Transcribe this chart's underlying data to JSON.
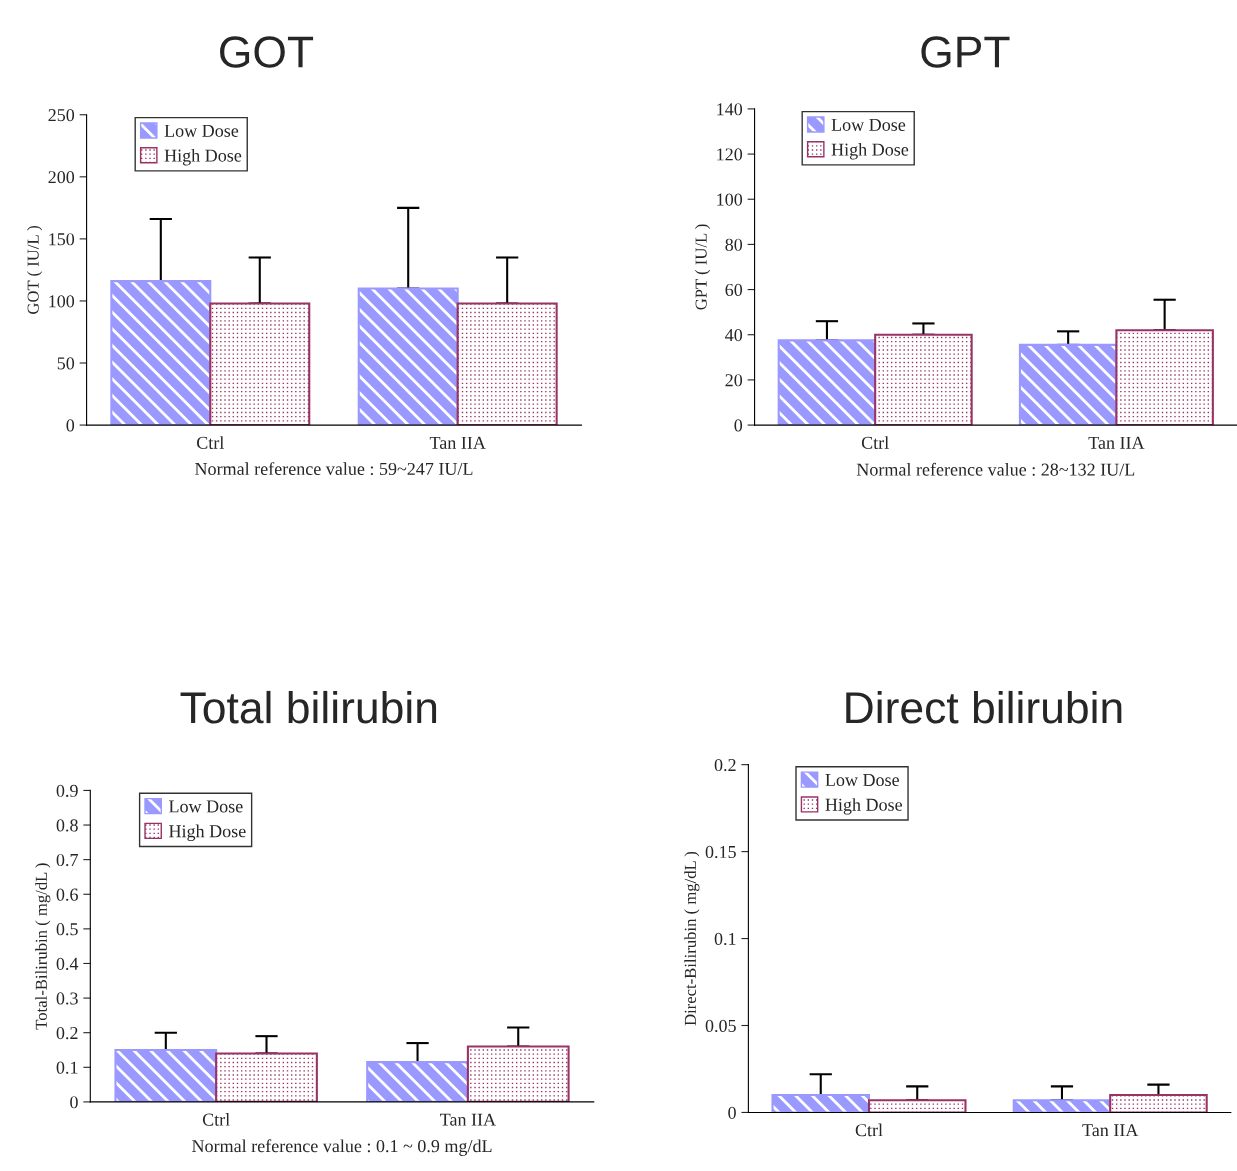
{
  "chart_data": [
    {
      "type": "bar",
      "title": "GOT",
      "ylabel": "GOT ( IU/L )",
      "categories": [
        "Ctrl",
        "Tan IIA"
      ],
      "ylim": [
        0,
        250
      ],
      "yticks": [
        0,
        50,
        100,
        150,
        200,
        250
      ],
      "legend": "top left",
      "grid": false,
      "annotations": [
        "Normal reference value : 59~247 IU/L"
      ],
      "series": [
        {
          "name": "Low Dose",
          "color": "#9999ff",
          "values": [
            116,
            110
          ],
          "errors": [
            [
              116,
              166
            ],
            [
              110,
              175
            ]
          ]
        },
        {
          "name": "High Dose",
          "color": "#993366",
          "values": [
            98,
            98
          ],
          "errors": [
            [
              98,
              135
            ],
            [
              98,
              135
            ]
          ]
        }
      ]
    },
    {
      "type": "bar",
      "title": "GPT",
      "ylabel": "GPT ( IU/L )",
      "categories": [
        "Ctrl",
        "Tan IIA"
      ],
      "ylim": [
        0,
        140
      ],
      "yticks": [
        0,
        20,
        40,
        60,
        80,
        100,
        120,
        140
      ],
      "legend": "top left",
      "grid": false,
      "annotations": [
        "Normal reference value : 28~132 IU/L"
      ],
      "series": [
        {
          "name": "Low Dose",
          "color": "#9999ff",
          "values": [
            37.5,
            35.5
          ],
          "errors": [
            [
              37.5,
              46
            ],
            [
              35.5,
              41.5
            ]
          ]
        },
        {
          "name": "High Dose",
          "color": "#993366",
          "values": [
            40,
            42
          ],
          "errors": [
            [
              40,
              45
            ],
            [
              42,
              55.5
            ]
          ]
        }
      ]
    },
    {
      "type": "bar",
      "title": "Total bilirubin",
      "ylabel": "Total-Bilirubin ( mg/dL )",
      "categories": [
        "Ctrl",
        "Tan IIA"
      ],
      "ylim": [
        0,
        0.9
      ],
      "yticks": [
        0,
        0.1,
        0.2,
        0.3,
        0.4,
        0.5,
        0.6,
        0.7,
        0.8,
        0.9
      ],
      "legend": "top left",
      "grid": false,
      "annotations": [
        "Normal reference value : 0.1 ~ 0.9 mg/dL"
      ],
      "series": [
        {
          "name": "Low Dose",
          "color": "#9999ff",
          "values": [
            0.15,
            0.115
          ],
          "errors": [
            [
              0.15,
              0.2
            ],
            [
              0.115,
              0.17
            ]
          ]
        },
        {
          "name": "High Dose",
          "color": "#993366",
          "values": [
            0.14,
            0.16
          ],
          "errors": [
            [
              0.14,
              0.19
            ],
            [
              0.16,
              0.215
            ]
          ]
        }
      ]
    },
    {
      "type": "bar",
      "title": "Direct bilirubin",
      "ylabel": "Direct-Bilirubin ( mg/dL )",
      "categories": [
        "Ctrl",
        "Tan IIA"
      ],
      "ylim": [
        0,
        0.2
      ],
      "yticks": [
        0,
        0.05,
        0.1,
        0.15,
        0.2
      ],
      "legend": "top left",
      "grid": false,
      "series": [
        {
          "name": "Low Dose",
          "color": "#9999ff",
          "values": [
            0.01,
            0.007
          ],
          "errors": [
            [
              0.01,
              0.022
            ],
            [
              0.007,
              0.015
            ]
          ]
        },
        {
          "name": "High Dose",
          "color": "#993366",
          "values": [
            0.007,
            0.01
          ],
          "errors": [
            [
              0.007,
              0.015
            ],
            [
              0.01,
              0.016
            ]
          ]
        }
      ]
    }
  ]
}
